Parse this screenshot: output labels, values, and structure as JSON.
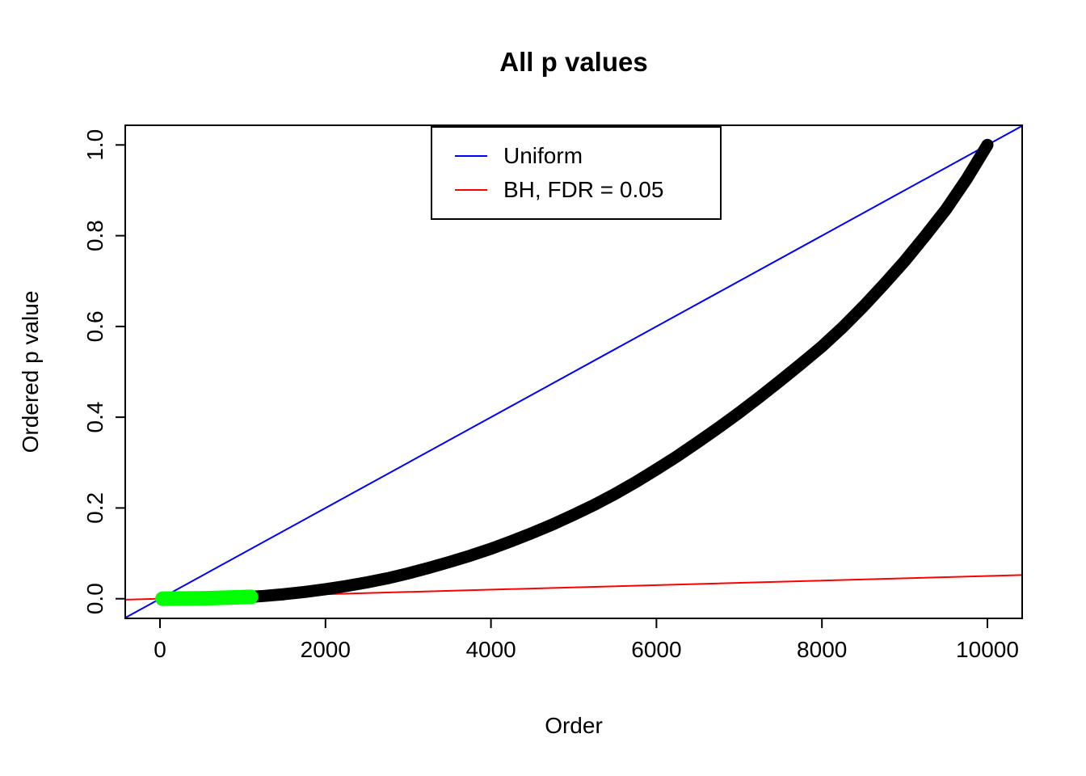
{
  "chart_data": {
    "type": "scatter",
    "title": "All p values",
    "xlabel": "Order",
    "ylabel": "Ordered p value",
    "xlim": [
      -420,
      10420
    ],
    "ylim": [
      -0.0433,
      1.0433
    ],
    "grid": false,
    "x_ticks": [
      0,
      2000,
      4000,
      6000,
      8000,
      10000
    ],
    "x_tick_labels": [
      "0",
      "2000",
      "4000",
      "6000",
      "8000",
      "10000"
    ],
    "y_ticks": [
      0.0,
      0.2,
      0.4,
      0.6,
      0.8,
      1.0
    ],
    "y_tick_labels": [
      "0.0",
      "0.2",
      "0.4",
      "0.6",
      "0.8",
      "1.0"
    ],
    "legend": {
      "position": "top-center",
      "entries": [
        {
          "label": "Uniform",
          "color": "#0000FF"
        },
        {
          "label": "BH, FDR = 0.05",
          "color": "#FF0000"
        }
      ]
    },
    "series": [
      {
        "name": "uniform-line",
        "kind": "line",
        "color": "#0000FF",
        "width": 2,
        "points": [
          [
            -420,
            -0.042
          ],
          [
            10420,
            1.042
          ]
        ]
      },
      {
        "name": "bh-threshold-line",
        "kind": "line",
        "color": "#FF0000",
        "width": 2,
        "points": [
          [
            -420,
            -0.0021
          ],
          [
            10420,
            0.0521
          ]
        ]
      },
      {
        "name": "ordered-p-values",
        "kind": "points-curve",
        "color": "#000000",
        "width": 15,
        "points": [
          [
            20,
            0.0002
          ],
          [
            250,
            0.0006
          ],
          [
            500,
            0.001
          ],
          [
            750,
            0.002
          ],
          [
            1000,
            0.003
          ],
          [
            1250,
            0.006
          ],
          [
            1500,
            0.01
          ],
          [
            1750,
            0.015
          ],
          [
            2000,
            0.021
          ],
          [
            2250,
            0.028
          ],
          [
            2500,
            0.036
          ],
          [
            2750,
            0.045
          ],
          [
            3000,
            0.056
          ],
          [
            3250,
            0.068
          ],
          [
            3500,
            0.081
          ],
          [
            3750,
            0.095
          ],
          [
            4000,
            0.11
          ],
          [
            4250,
            0.127
          ],
          [
            4500,
            0.145
          ],
          [
            4750,
            0.164
          ],
          [
            5000,
            0.185
          ],
          [
            5250,
            0.207
          ],
          [
            5500,
            0.231
          ],
          [
            5750,
            0.257
          ],
          [
            6000,
            0.285
          ],
          [
            6250,
            0.314
          ],
          [
            6500,
            0.345
          ],
          [
            6750,
            0.377
          ],
          [
            7000,
            0.41
          ],
          [
            7250,
            0.445
          ],
          [
            7500,
            0.481
          ],
          [
            7750,
            0.518
          ],
          [
            8000,
            0.556
          ],
          [
            8250,
            0.598
          ],
          [
            8500,
            0.644
          ],
          [
            8750,
            0.693
          ],
          [
            9000,
            0.744
          ],
          [
            9250,
            0.8
          ],
          [
            9500,
            0.858
          ],
          [
            9750,
            0.925
          ],
          [
            10000,
            1.0
          ]
        ]
      },
      {
        "name": "significant-p-values",
        "kind": "points-curve",
        "color": "#00FF00",
        "width": 18,
        "points": [
          [
            30,
            0.0002
          ],
          [
            550,
            0.001
          ],
          [
            1100,
            0.004
          ]
        ]
      }
    ]
  }
}
